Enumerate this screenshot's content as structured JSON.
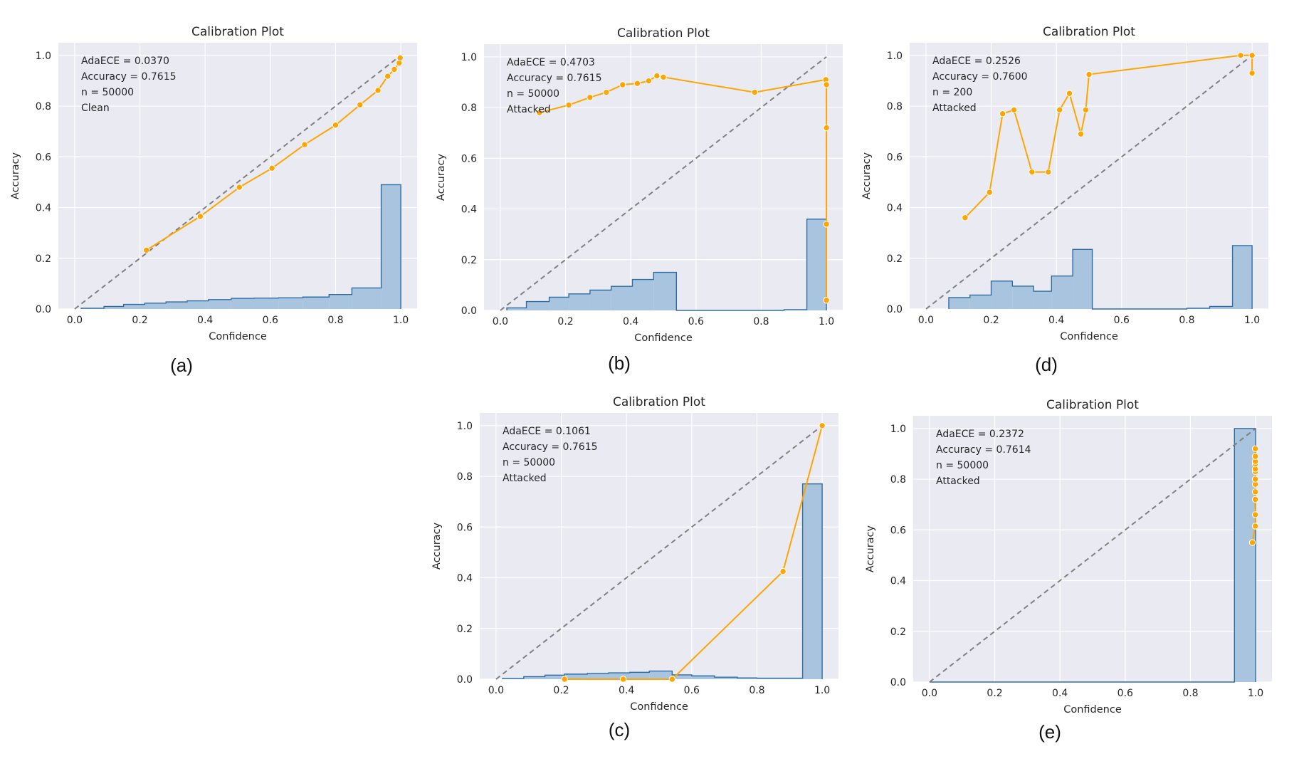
{
  "colors": {
    "plot_bg": "#eaeaf2",
    "grid": "#ffffff",
    "line": "#ffa500",
    "hist_fill": "#a9c4de",
    "hist_edge": "#2e6da4",
    "diagonal": "#808080",
    "text": "#262626"
  },
  "chart_data": [
    {
      "id": "a",
      "type": "line",
      "title": "Calibration Plot",
      "xlabel": "Confidence",
      "ylabel": "Accuracy",
      "xlim": [
        -0.05,
        1.05
      ],
      "ylim": [
        0,
        1.05
      ],
      "xticks": [
        "0.0",
        "0.2",
        "0.4",
        "0.6",
        "0.8",
        "1.0"
      ],
      "yticks": [
        "0.0",
        "0.2",
        "0.4",
        "0.6",
        "0.8",
        "1.0"
      ],
      "annotation": [
        "AdaECE = 0.0370",
        "Accuracy = 0.7615",
        "n = 50000",
        "Clean"
      ],
      "caption": "(a)",
      "reliability": {
        "x": [
          0.22,
          0.385,
          0.505,
          0.605,
          0.705,
          0.8,
          0.875,
          0.93,
          0.96,
          0.98,
          0.995,
          0.998
        ],
        "y": [
          0.232,
          0.365,
          0.48,
          0.555,
          0.648,
          0.725,
          0.805,
          0.862,
          0.918,
          0.945,
          0.97,
          0.99
        ]
      },
      "histogram": {
        "edges": [
          0.02,
          0.09,
          0.15,
          0.215,
          0.28,
          0.345,
          0.41,
          0.48,
          0.55,
          0.625,
          0.7,
          0.78,
          0.85,
          0.94,
          1.0
        ],
        "values": [
          0.003,
          0.01,
          0.018,
          0.023,
          0.028,
          0.032,
          0.037,
          0.042,
          0.043,
          0.044,
          0.047,
          0.057,
          0.083,
          0.49
        ]
      }
    },
    {
      "id": "b",
      "type": "line",
      "title": "Calibration Plot",
      "xlabel": "Confidence",
      "ylabel": "Accuracy",
      "xlim": [
        -0.05,
        1.05
      ],
      "ylim": [
        0,
        1.05
      ],
      "xticks": [
        "0.0",
        "0.2",
        "0.4",
        "0.6",
        "0.8",
        "1.0"
      ],
      "yticks": [
        "0.0",
        "0.2",
        "0.4",
        "0.6",
        "0.8",
        "1.0"
      ],
      "annotation": [
        "AdaECE = 0.4703",
        "Accuracy = 0.7615",
        "n = 50000",
        "Attacked"
      ],
      "caption": "(b)",
      "reliability": {
        "x": [
          0.12,
          0.21,
          0.275,
          0.325,
          0.375,
          0.42,
          0.455,
          0.48,
          0.5,
          0.78,
          0.998,
          1.0,
          1.0,
          1.0,
          1.0
        ],
        "y": [
          0.78,
          0.81,
          0.84,
          0.86,
          0.89,
          0.895,
          0.905,
          0.925,
          0.92,
          0.86,
          0.91,
          0.89,
          0.72,
          0.34,
          0.04
        ]
      },
      "histogram": {
        "edges": [
          0.02,
          0.08,
          0.15,
          0.21,
          0.275,
          0.34,
          0.405,
          0.47,
          0.54,
          0.6,
          0.7,
          0.8,
          0.87,
          0.94,
          1.0
        ],
        "values": [
          0.01,
          0.035,
          0.052,
          0.065,
          0.08,
          0.095,
          0.122,
          0.15,
          0.0,
          0.0,
          0.0,
          0.0,
          0.003,
          0.36
        ]
      }
    },
    {
      "id": "d",
      "type": "line",
      "title": "Calibration Plot",
      "xlabel": "Confidence",
      "ylabel": "Accuracy",
      "xlim": [
        -0.05,
        1.05
      ],
      "ylim": [
        0,
        1.05
      ],
      "xticks": [
        "0.0",
        "0.2",
        "0.4",
        "0.6",
        "0.8",
        "1.0"
      ],
      "yticks": [
        "0.0",
        "0.2",
        "0.4",
        "0.6",
        "0.8",
        "1.0"
      ],
      "annotation": [
        "AdaECE = 0.2526",
        "Accuracy = 0.7600",
        "n = 200",
        "Attacked"
      ],
      "caption": "(d)",
      "reliability": {
        "x": [
          0.12,
          0.195,
          0.235,
          0.27,
          0.325,
          0.375,
          0.41,
          0.44,
          0.475,
          0.49,
          0.5,
          0.965,
          1.0,
          1.0
        ],
        "y": [
          0.36,
          0.46,
          0.77,
          0.785,
          0.54,
          0.54,
          0.785,
          0.85,
          0.69,
          0.785,
          0.925,
          1.0,
          1.0,
          0.93
        ]
      },
      "histogram": {
        "edges": [
          0.07,
          0.135,
          0.2,
          0.265,
          0.33,
          0.385,
          0.45,
          0.51,
          0.6,
          0.7,
          0.8,
          0.87,
          0.94,
          1.0
        ],
        "values": [
          0.045,
          0.055,
          0.11,
          0.09,
          0.07,
          0.13,
          0.235,
          0.0,
          0.0,
          0.0,
          0.003,
          0.01,
          0.25
        ]
      }
    },
    {
      "id": "c",
      "type": "line",
      "title": "Calibration Plot",
      "xlabel": "Confidence",
      "ylabel": "Accuracy",
      "xlim": [
        -0.05,
        1.05
      ],
      "ylim": [
        0,
        1.05
      ],
      "xticks": [
        "0.0",
        "0.2",
        "0.4",
        "0.6",
        "0.8",
        "1.0"
      ],
      "yticks": [
        "0.0",
        "0.2",
        "0.4",
        "0.6",
        "0.8",
        "1.0"
      ],
      "annotation": [
        "AdaECE = 0.1061",
        "Accuracy = 0.7615",
        "n = 50000",
        "Attacked"
      ],
      "caption": "(c)",
      "reliability": {
        "x": [
          0.21,
          0.39,
          0.54,
          0.88,
          1.0
        ],
        "y": [
          0.0,
          0.0,
          0.0,
          0.425,
          1.0
        ]
      },
      "histogram": {
        "edges": [
          0.02,
          0.085,
          0.15,
          0.21,
          0.28,
          0.345,
          0.41,
          0.47,
          0.54,
          0.6,
          0.67,
          0.74,
          0.8,
          0.87,
          0.94,
          1.0
        ],
        "values": [
          0.003,
          0.01,
          0.016,
          0.02,
          0.023,
          0.025,
          0.027,
          0.032,
          0.017,
          0.013,
          0.008,
          0.005,
          0.004,
          0.004,
          0.77
        ]
      }
    },
    {
      "id": "e",
      "type": "line",
      "title": "Calibration Plot",
      "xlabel": "Confidence",
      "ylabel": "Accuracy",
      "xlim": [
        -0.05,
        1.05
      ],
      "ylim": [
        0,
        1.05
      ],
      "xticks": [
        "0.0",
        "0.2",
        "0.4",
        "0.6",
        "0.8",
        "1.0"
      ],
      "yticks": [
        "0.0",
        "0.2",
        "0.4",
        "0.6",
        "0.8",
        "1.0"
      ],
      "annotation": [
        "AdaECE = 0.2372",
        "Accuracy = 0.7614",
        "n = 50000",
        "Attacked"
      ],
      "caption": "(e)",
      "reliability": {
        "x": [
          0.99,
          0.999,
          0.999,
          0.999,
          0.999,
          0.999,
          0.999,
          0.999,
          0.999,
          0.999,
          0.999,
          0.999,
          0.999
        ],
        "y": [
          0.55,
          0.615,
          0.66,
          0.72,
          0.75,
          0.78,
          0.8,
          0.83,
          0.84,
          0.86,
          0.87,
          0.89,
          0.92
        ]
      },
      "histogram": {
        "edges": [
          0.0,
          0.935,
          1.0
        ],
        "values": [
          0.0,
          1.0
        ]
      }
    }
  ]
}
